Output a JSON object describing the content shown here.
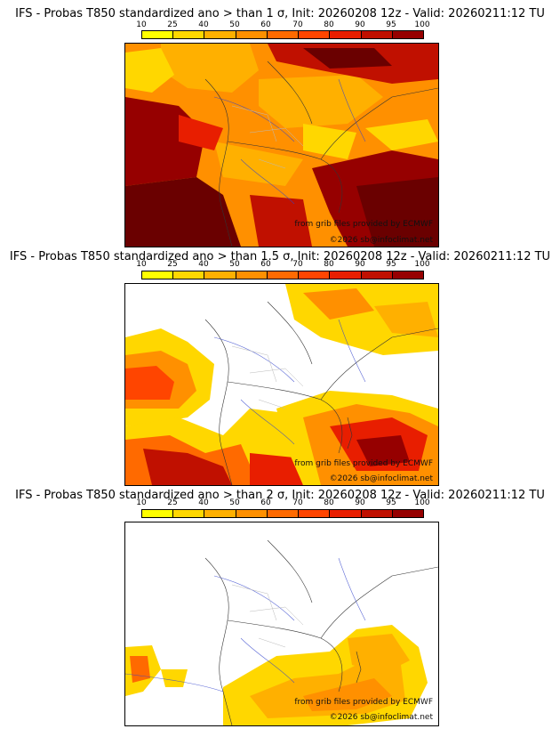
{
  "colorbar": {
    "ticks": [
      "10",
      "25",
      "40",
      "50",
      "60",
      "70",
      "80",
      "90",
      "95",
      "100"
    ],
    "colors": [
      "#ffff00",
      "#ffd700",
      "#ffb000",
      "#ff9000",
      "#ff6a00",
      "#ff4500",
      "#e81e00",
      "#c01000",
      "#960000",
      "#6a0000"
    ]
  },
  "credits": {
    "source": "from grib files provided by ECMWF",
    "copyright": "©2026 sb@infoclimat.net"
  },
  "panels": [
    {
      "title": "IFS - Probas T850  standardized ano > than 1 σ, Init: 20260208 12z - Valid: 20260211:12 TU"
    },
    {
      "title": "IFS - Probas T850  standardized ano > than 1.5 σ, Init: 20260208 12z - Valid: 20260211:12 TU"
    },
    {
      "title": "IFS - Probas T850  standardized ano > than 2 σ, Init: 20260208 12z - Valid: 20260211:12 TU"
    }
  ]
}
